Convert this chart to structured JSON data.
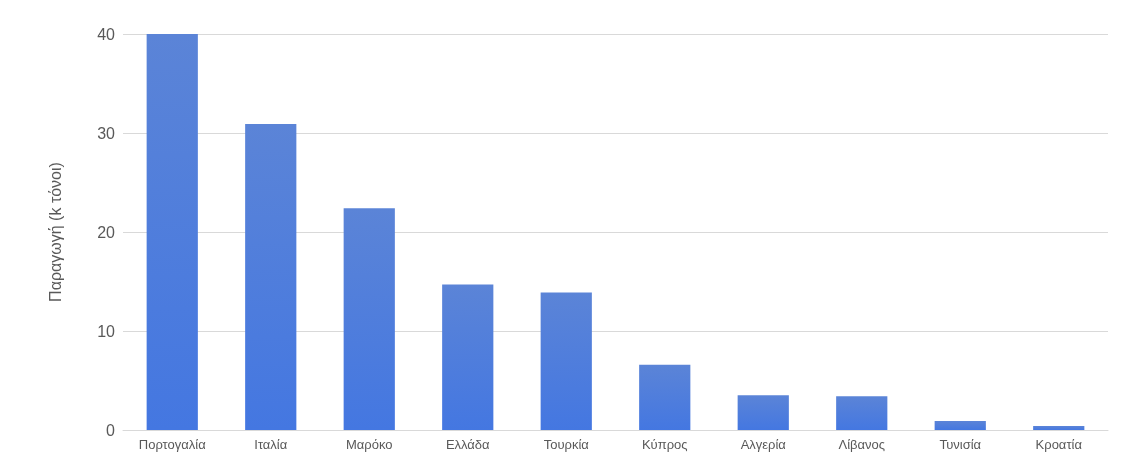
{
  "chart_data": {
    "type": "bar",
    "ylabel": "Παραγωγή (k τόνοι)",
    "categories": [
      "Πορτογαλία",
      "Ιταλία",
      "Μαρόκο",
      "Ελλάδα",
      "Τουρκία",
      "Κύπρος",
      "Αλγερία",
      "Λίβανος",
      "Τυνισία",
      "Κροατία"
    ],
    "values": [
      40,
      30.9,
      22.4,
      14.7,
      13.9,
      6.6,
      3.5,
      3.4,
      0.9,
      0.4
    ],
    "color": "#3f6fd1",
    "ylim": [
      0,
      40
    ],
    "yticks": [
      0,
      10,
      20,
      30,
      40
    ],
    "grid": "y"
  }
}
